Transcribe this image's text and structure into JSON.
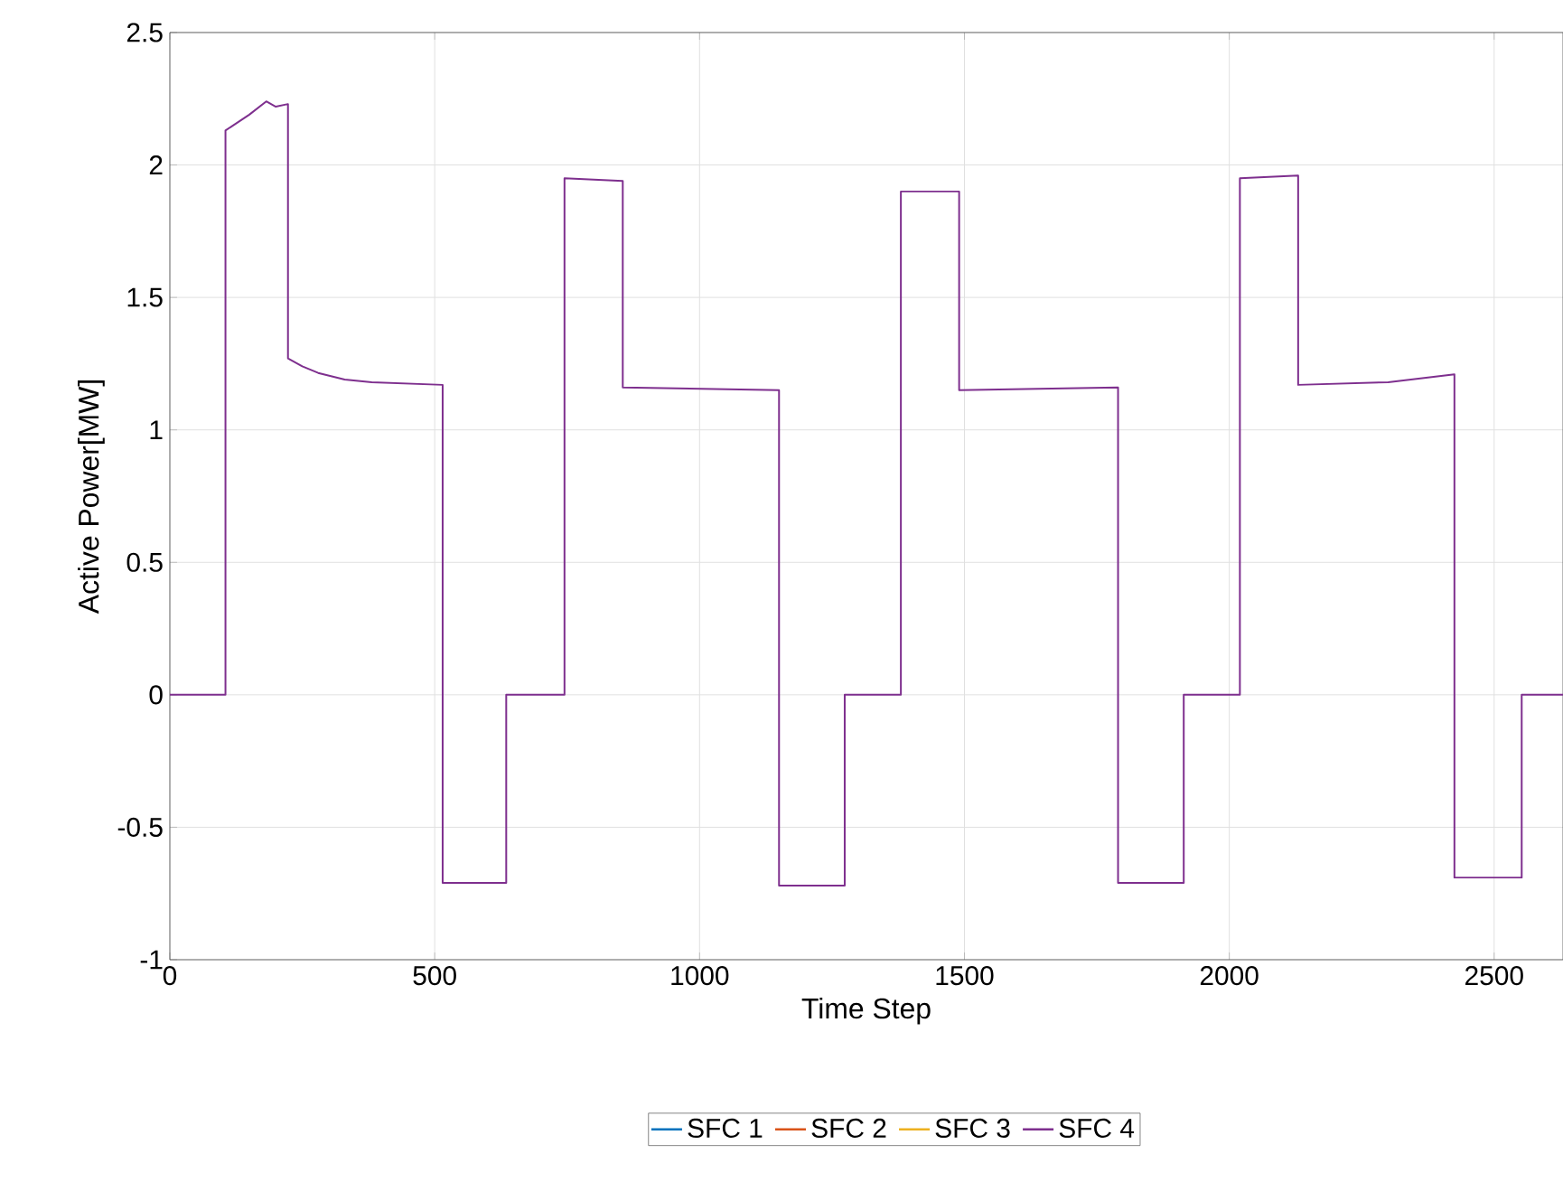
{
  "chart_data": {
    "type": "line",
    "xlabel": "Time Step",
    "ylabel": "Active Power[MW]",
    "x": [
      0,
      105,
      105,
      150,
      182,
      200,
      223,
      223,
      250,
      280,
      330,
      381,
      515,
      515,
      635,
      635,
      745,
      745,
      855,
      855,
      1150,
      1150,
      1274,
      1274,
      1380,
      1380,
      1490,
      1490,
      1790,
      1790,
      1914,
      1914,
      2020,
      2020,
      2130,
      2130,
      2300,
      2425,
      2425,
      2552,
      2552,
      2630
    ],
    "series": [
      {
        "name": "SFC 1",
        "color": "#0072bd",
        "values": [
          null,
          null,
          null,
          null,
          null,
          null,
          null,
          null,
          null,
          null,
          null,
          null,
          null,
          null,
          null,
          null,
          null,
          null,
          null,
          null,
          null,
          null,
          null,
          null,
          null,
          null,
          null,
          null,
          null,
          null,
          null,
          null,
          null,
          null,
          null,
          null,
          null,
          null,
          null,
          null,
          null,
          null
        ]
      },
      {
        "name": "SFC 2",
        "color": "#d95319",
        "values": [
          null,
          null,
          null,
          null,
          null,
          null,
          null,
          null,
          null,
          null,
          null,
          null,
          null,
          null,
          null,
          null,
          null,
          null,
          null,
          null,
          null,
          null,
          null,
          null,
          null,
          null,
          null,
          null,
          null,
          null,
          null,
          null,
          null,
          null,
          null,
          null,
          null,
          null,
          null,
          null,
          null,
          null
        ]
      },
      {
        "name": "SFC 3",
        "color": "#edb120",
        "values": [
          null,
          null,
          null,
          null,
          null,
          null,
          null,
          null,
          null,
          null,
          null,
          null,
          null,
          null,
          null,
          null,
          null,
          null,
          null,
          null,
          null,
          null,
          null,
          null,
          null,
          null,
          null,
          null,
          null,
          null,
          null,
          null,
          null,
          null,
          null,
          null,
          null,
          null,
          null,
          null,
          null,
          null
        ]
      },
      {
        "name": "SFC 4",
        "color": "#7e2f8e",
        "values": [
          0,
          0,
          2.13,
          2.19,
          2.24,
          2.22,
          2.23,
          1.27,
          1.24,
          1.215,
          1.19,
          1.18,
          1.17,
          -0.71,
          -0.71,
          0,
          0,
          1.95,
          1.94,
          1.16,
          1.15,
          -0.72,
          -0.72,
          0,
          0,
          1.9,
          1.9,
          1.15,
          1.16,
          -0.71,
          -0.71,
          0,
          0,
          1.95,
          1.96,
          1.17,
          1.18,
          1.21,
          -0.69,
          -0.69,
          0,
          0
        ]
      }
    ],
    "xlim": [
      0,
      2630
    ],
    "ylim": [
      -1,
      2.5
    ],
    "xticks": [
      0,
      500,
      1000,
      1500,
      2000,
      2500
    ],
    "yticks": [
      -1,
      -0.5,
      0,
      0.5,
      1,
      1.5,
      2,
      2.5
    ],
    "grid": true,
    "legend": "bottom"
  }
}
